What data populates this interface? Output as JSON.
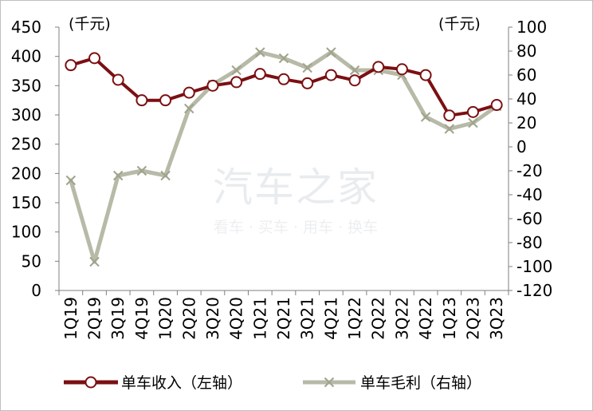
{
  "chart_data": {
    "type": "line",
    "categories": [
      "1Q19",
      "2Q19",
      "3Q19",
      "4Q19",
      "1Q20",
      "2Q20",
      "3Q20",
      "4Q20",
      "1Q21",
      "2Q21",
      "3Q21",
      "4Q21",
      "1Q22",
      "2Q22",
      "3Q22",
      "4Q22",
      "1Q23",
      "2Q23",
      "3Q23"
    ],
    "y_left": {
      "unit_label": "(千元)",
      "min": 0,
      "max": 450,
      "ticks": [
        0,
        50,
        100,
        150,
        200,
        250,
        300,
        350,
        400,
        450
      ]
    },
    "y_right": {
      "unit_label": "(千元)",
      "min": -120,
      "max": 100,
      "ticks": [
        -120,
        -100,
        -80,
        -60,
        -40,
        -20,
        0,
        20,
        40,
        60,
        80,
        100
      ]
    },
    "series": [
      {
        "name": "单车收入（左轴）",
        "axis": "left",
        "color": "#7b0f12",
        "marker": "circle",
        "values": [
          385,
          397,
          360,
          325,
          325,
          338,
          350,
          356,
          370,
          361,
          354,
          368,
          359,
          382,
          378,
          368,
          299,
          305,
          317
        ]
      },
      {
        "name": "单车毛利（右轴）",
        "axis": "right",
        "color": "#b7baa7",
        "marker": "x",
        "values": [
          -28,
          -96,
          -24,
          -20,
          -24,
          32,
          52,
          64,
          79,
          74,
          66,
          79,
          64,
          64,
          60,
          25,
          15,
          20,
          34
        ]
      }
    ]
  },
  "watermark": {
    "main": "汽车之家",
    "sub": "看车 · 买车 · 用车 · 换车"
  }
}
